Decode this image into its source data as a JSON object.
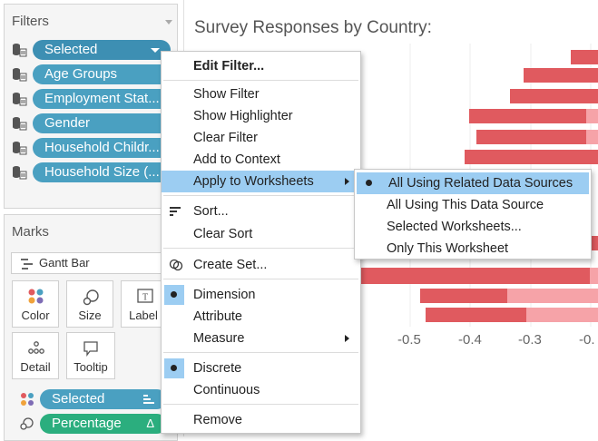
{
  "filters": {
    "title": "Filters",
    "pills": [
      {
        "label": "Selected"
      },
      {
        "label": "Age Groups"
      },
      {
        "label": "Employment Stat..."
      },
      {
        "label": "Gender"
      },
      {
        "label": "Household Childr..."
      },
      {
        "label": "Household Size (..."
      }
    ]
  },
  "marks": {
    "title": "Marks",
    "mark_type": "Gantt Bar",
    "cards": [
      {
        "label": "Color",
        "icon": "color-dots-icon"
      },
      {
        "label": "Size",
        "icon": "size-icon"
      },
      {
        "label": "Label",
        "icon": "label-icon"
      },
      {
        "label": "Detail",
        "icon": "detail-icon"
      },
      {
        "label": "Tooltip",
        "icon": "tooltip-icon"
      }
    ],
    "fields": [
      {
        "label": "Selected",
        "color": "#4aa0c1"
      },
      {
        "label": "Percentage",
        "color": "#2bae7e",
        "delta": "Δ"
      }
    ]
  },
  "chart": {
    "title": "Survey Responses by Country:",
    "ticks": [
      "-0.5",
      "-0.4",
      "-0.3",
      "-0."
    ],
    "colors": {
      "dark": "#e05a5f",
      "light": "#f6a3a8"
    }
  },
  "context_menu": {
    "items": [
      {
        "label": "Edit Filter..."
      },
      {
        "label": "Show Filter"
      },
      {
        "label": "Show Highlighter"
      },
      {
        "label": "Clear Filter"
      },
      {
        "label": "Add to Context"
      },
      {
        "label": "Apply to Worksheets"
      },
      {
        "label": "Sort..."
      },
      {
        "label": "Clear Sort"
      },
      {
        "label": "Create Set..."
      },
      {
        "label": "Dimension"
      },
      {
        "label": "Attribute"
      },
      {
        "label": "Measure"
      },
      {
        "label": "Discrete"
      },
      {
        "label": "Continuous"
      },
      {
        "label": "Remove"
      }
    ]
  },
  "submenu": {
    "items": [
      {
        "label": "All Using Related Data Sources",
        "selected": true
      },
      {
        "label": "All Using This Data Source"
      },
      {
        "label": "Selected Worksheets..."
      },
      {
        "label": "Only This Worksheet"
      }
    ]
  },
  "colors": {
    "accent": "#9ccdf2",
    "pill": "#4aa0c1",
    "green_pill": "#2bae7e"
  }
}
